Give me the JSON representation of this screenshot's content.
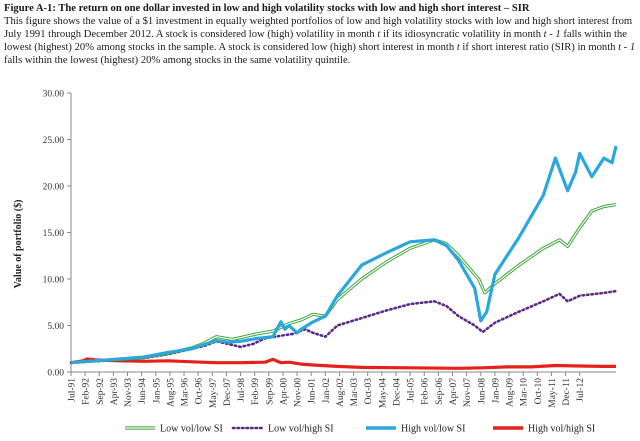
{
  "figure": {
    "title": "Figure A-1: The return on one dollar invested in low and high volatility stocks with low and high short interest – SIR",
    "caption_parts": [
      "This figure shows the value of a $1 investment in equally weighted portfolios of low and high volatility stocks with low and high short interest from July 1991 through December 2012. A stock is considered low (high) volatility in month ",
      "t",
      " if its idiosyncratic volatility in month ",
      "t - 1",
      " falls within the lowest (highest) 20% among stocks in the sample. A stock is considered low (high) short interest in month ",
      "t",
      " if short interest ratio (SIR) in month ",
      "t - 1",
      " falls within the lowest (highest) 20% among stocks in the same volatility quintile."
    ]
  },
  "colors": {
    "low_low": "#3aa53a",
    "low_high": "#5b2a86",
    "high_low": "#2aa7dc",
    "high_high": "#e8201c",
    "axis": "#888888"
  },
  "chart_data": {
    "type": "line",
    "title": "",
    "xlabel": "",
    "ylabel": "Value of portfolio ($)",
    "ylim": [
      0,
      30
    ],
    "yticks": [
      "0.00",
      "5.00",
      "10.00",
      "15.00",
      "20.00",
      "25.00",
      "30.00"
    ],
    "x_start": "1991-07",
    "x_end": "2012-12",
    "xticks": [
      "Jul-91",
      "Feb-92",
      "Sep-92",
      "Apr-93",
      "Nov-93",
      "Jun-94",
      "Jan-95",
      "Aug-95",
      "Mar-96",
      "Oct-96",
      "May-97",
      "Dec-97",
      "Jul-98",
      "Feb-99",
      "Sep-99",
      "Apr-00",
      "Nov-00",
      "Jun-01",
      "Jan-02",
      "Aug-02",
      "Mar-03",
      "Oct-03",
      "May-04",
      "Dec-04",
      "Jul-05",
      "Feb-06",
      "Sep-06",
      "Apr-07",
      "Nov-07",
      "Jun-08",
      "Jan-09",
      "Aug-09",
      "Mar-10",
      "Oct-10",
      "May-11",
      "Dec-11",
      "Jul-12"
    ],
    "legend_position": "bottom",
    "series": [
      {
        "name": "Low vol/low SI",
        "style": "double",
        "points": [
          [
            0,
            1
          ],
          [
            12,
            1.2
          ],
          [
            24,
            1.35
          ],
          [
            36,
            1.55
          ],
          [
            48,
            2
          ],
          [
            60,
            2.6
          ],
          [
            66,
            3.1
          ],
          [
            72,
            3.8
          ],
          [
            80,
            3.5
          ],
          [
            84,
            3.7
          ],
          [
            92,
            4.1
          ],
          [
            100,
            4.4
          ],
          [
            108,
            5.2
          ],
          [
            114,
            5.6
          ],
          [
            120,
            6.2
          ],
          [
            126,
            6.0
          ],
          [
            132,
            7.8
          ],
          [
            144,
            10
          ],
          [
            156,
            11.8
          ],
          [
            168,
            13.3
          ],
          [
            180,
            14.2
          ],
          [
            186,
            13.8
          ],
          [
            192,
            12.5
          ],
          [
            202,
            10
          ],
          [
            205,
            8.5
          ],
          [
            210,
            9.5
          ],
          [
            222,
            11.5
          ],
          [
            234,
            13.3
          ],
          [
            242,
            14.2
          ],
          [
            246,
            13.5
          ],
          [
            252,
            15.5
          ],
          [
            258,
            17.3
          ],
          [
            264,
            17.8
          ],
          [
            270,
            18
          ]
        ]
      },
      {
        "name": "Low vol/high SI",
        "style": "dotted",
        "points": [
          [
            0,
            1
          ],
          [
            12,
            1.15
          ],
          [
            24,
            1.3
          ],
          [
            36,
            1.5
          ],
          [
            48,
            1.9
          ],
          [
            60,
            2.5
          ],
          [
            66,
            2.8
          ],
          [
            72,
            3.3
          ],
          [
            80,
            2.9
          ],
          [
            84,
            2.7
          ],
          [
            90,
            3.0
          ],
          [
            96,
            3.6
          ],
          [
            104,
            3.9
          ],
          [
            110,
            4.1
          ],
          [
            116,
            4.6
          ],
          [
            120,
            4.2
          ],
          [
            126,
            3.8
          ],
          [
            132,
            5.0
          ],
          [
            144,
            5.8
          ],
          [
            156,
            6.6
          ],
          [
            168,
            7.3
          ],
          [
            180,
            7.6
          ],
          [
            186,
            7.1
          ],
          [
            192,
            6.0
          ],
          [
            200,
            5.0
          ],
          [
            204,
            4.3
          ],
          [
            210,
            5.3
          ],
          [
            222,
            6.5
          ],
          [
            234,
            7.6
          ],
          [
            242,
            8.4
          ],
          [
            246,
            7.6
          ],
          [
            252,
            8.2
          ],
          [
            264,
            8.5
          ],
          [
            270,
            8.7
          ]
        ]
      },
      {
        "name": "High vol/low SI",
        "style": "thick",
        "points": [
          [
            0,
            1
          ],
          [
            12,
            1.2
          ],
          [
            24,
            1.4
          ],
          [
            36,
            1.6
          ],
          [
            48,
            2.1
          ],
          [
            60,
            2.5
          ],
          [
            72,
            3.4
          ],
          [
            78,
            3.2
          ],
          [
            84,
            3.3
          ],
          [
            92,
            3.6
          ],
          [
            100,
            3.8
          ],
          [
            104,
            5.4
          ],
          [
            106,
            4.6
          ],
          [
            108,
            5.0
          ],
          [
            112,
            4.2
          ],
          [
            114,
            4.6
          ],
          [
            120,
            5.4
          ],
          [
            126,
            6.0
          ],
          [
            132,
            8.2
          ],
          [
            144,
            11.5
          ],
          [
            156,
            12.8
          ],
          [
            168,
            14.0
          ],
          [
            180,
            14.2
          ],
          [
            186,
            13.6
          ],
          [
            192,
            12.0
          ],
          [
            200,
            9.0
          ],
          [
            203,
            5.5
          ],
          [
            206,
            6.5
          ],
          [
            210,
            10.5
          ],
          [
            222,
            14.5
          ],
          [
            234,
            19.0
          ],
          [
            240,
            23.0
          ],
          [
            246,
            19.5
          ],
          [
            250,
            21.5
          ],
          [
            252,
            23.5
          ],
          [
            258,
            21.0
          ],
          [
            264,
            23.0
          ],
          [
            268,
            22.5
          ],
          [
            270,
            24.3
          ]
        ]
      },
      {
        "name": "High vol/high SI",
        "style": "thick",
        "points": [
          [
            0,
            1
          ],
          [
            6,
            1.2
          ],
          [
            8,
            1.4
          ],
          [
            12,
            1.3
          ],
          [
            24,
            1.2
          ],
          [
            36,
            1.15
          ],
          [
            48,
            1.2
          ],
          [
            60,
            1.1
          ],
          [
            72,
            1.0
          ],
          [
            84,
            1.0
          ],
          [
            96,
            1.05
          ],
          [
            100,
            1.35
          ],
          [
            104,
            1.0
          ],
          [
            108,
            1.05
          ],
          [
            114,
            0.85
          ],
          [
            120,
            0.75
          ],
          [
            132,
            0.6
          ],
          [
            144,
            0.5
          ],
          [
            168,
            0.45
          ],
          [
            192,
            0.4
          ],
          [
            204,
            0.45
          ],
          [
            216,
            0.55
          ],
          [
            228,
            0.55
          ],
          [
            240,
            0.7
          ],
          [
            252,
            0.65
          ],
          [
            264,
            0.6
          ],
          [
            270,
            0.6
          ]
        ]
      }
    ]
  }
}
